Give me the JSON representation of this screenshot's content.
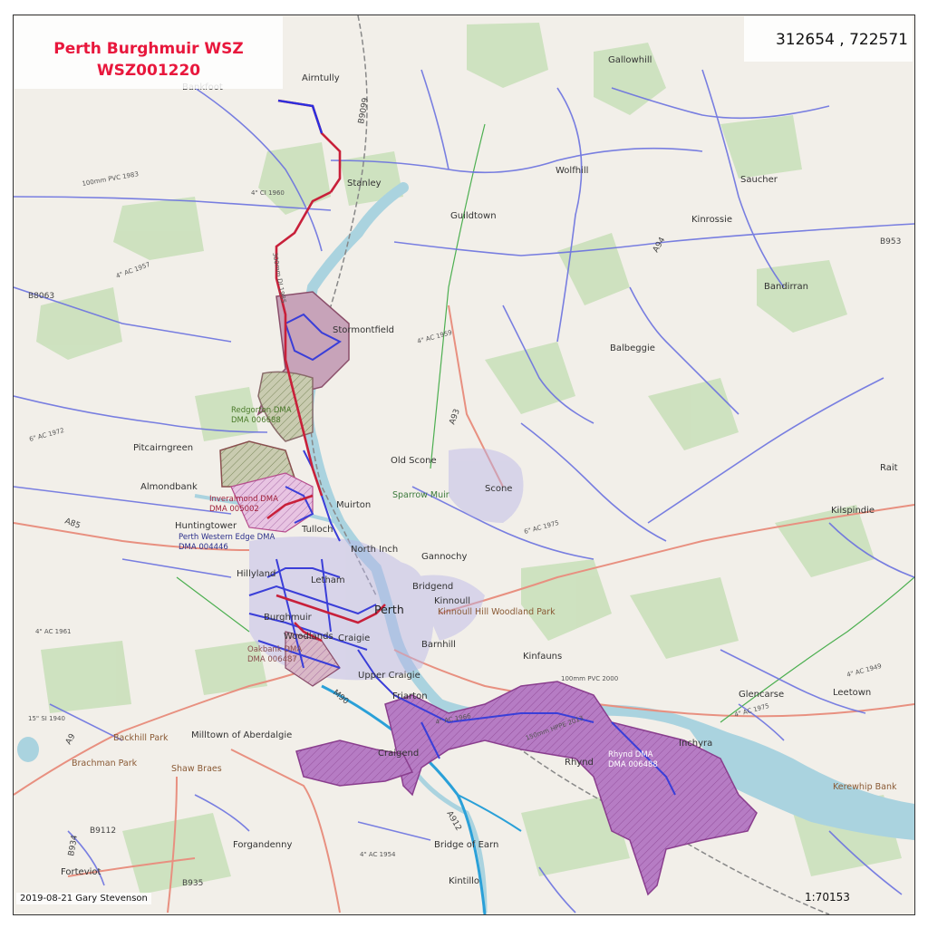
{
  "map": {
    "title_line1": "Perth Burghmuir WSZ",
    "title_line2": "WSZ001220",
    "coordinates": "312654 , 722571",
    "credit": "2019-08-21 Gary Stevenson",
    "scale": "1:70153",
    "colors": {
      "land": "#f2efe9",
      "woodland": "#c8dfb8",
      "river": "#aad3df",
      "water_main": "#6b72e0",
      "trunk_main": "#d42a3c",
      "dma_fill": "#a44ea6",
      "motorway": "#2aa0d8",
      "road": "#e89080",
      "railway": "#888888"
    },
    "places": [
      "Airntully",
      "Bankfoot",
      "Gallowhill",
      "Stanley",
      "Wolfhill",
      "Saucher",
      "Guildtown",
      "Kinrossie",
      "Bandirran",
      "Stormontfield",
      "Balbeggie",
      "Pitcairngreen",
      "Old Scone",
      "Rait",
      "Almondbank",
      "Scone",
      "Kilspindie",
      "Muirton",
      "Huntingtower",
      "Tulloch",
      "North Inch",
      "Gannochy",
      "Hillyland",
      "Letham",
      "Bridgend",
      "Kinnoull",
      "Perth",
      "Burghmuir",
      "Woodlands",
      "Craigie",
      "Barnhill",
      "Kinfauns",
      "Upper Craigie",
      "Friarton",
      "Glencarse",
      "Leetown",
      "Milltown of Aberdalgie",
      "Inchyra",
      "Craigend",
      "Rhynd",
      "Forgandenny",
      "Bridge of Earn",
      "Forteviot",
      "Kintillo"
    ],
    "parks": [
      "Sparrow Muir",
      "Kinnoull Hill Woodland Park",
      "Backhill Park",
      "Brachman Park",
      "Shaw Braes",
      "Kerewhip Bank"
    ],
    "dmas": [
      {
        "name": "Redgorton DMA",
        "code": "DMA 006688"
      },
      {
        "name": "Inveralmond DMA",
        "code": "DMA 005002"
      },
      {
        "name": "Perth Western Edge DMA",
        "code": "DMA 004446"
      },
      {
        "name": "Oakbank DMA",
        "code": "DMA 006487"
      },
      {
        "name": "Rhynd DMA",
        "code": "DMA 006488"
      }
    ],
    "roads": [
      "A9",
      "A93",
      "A94",
      "A85",
      "A912",
      "B9099",
      "B8063",
      "B953",
      "B935",
      "B934",
      "B9112",
      "M90"
    ],
    "pipe_labels": [
      "100mm PVC 1983",
      "4\" CI 1960",
      "4\" AC 1957",
      "4\" AC 1959",
      "4\" AC 1966",
      "4\" AC 1954",
      "6\" AC 1972",
      "6\" AC 1975",
      "150mm HPPE 2013",
      "100mm PVC 2000",
      "300mm DI 1985",
      "4\" AC 1949",
      "4\" AC 1975",
      "4\" AC 1961",
      "15\" SI 1940"
    ]
  }
}
